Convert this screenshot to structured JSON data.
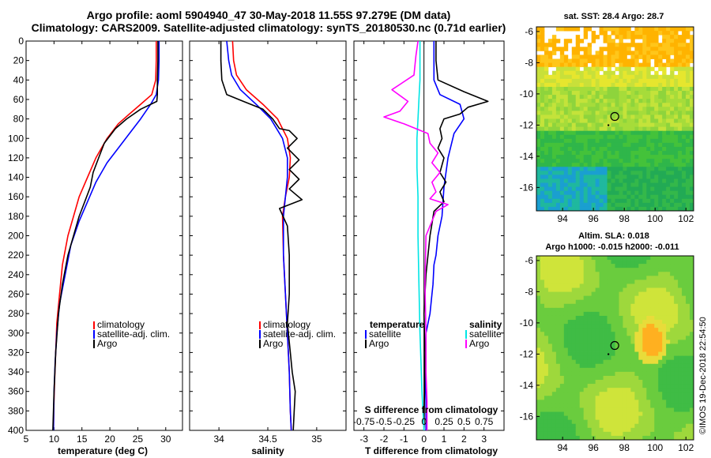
{
  "header": {
    "line1": "Argo profile: aoml 5904940_47 30-May-2018 11.55S 97.279E (DM data)",
    "line2": "Climatology: CARS2009. Satellite-adjusted climatology: synTS_20180530.nc (0.71d earlier)"
  },
  "watermark": "©IMOS 19-Dec-2018 22:54:50",
  "colors": {
    "clim": "#ff0000",
    "sat": "#0000ff",
    "argo": "#000000",
    "sat_s": "#00e5e5",
    "argo_s": "#ff00ff"
  },
  "chart_data": [
    {
      "type": "line",
      "name": "temperature",
      "xlabel": "temperature (deg C)",
      "ylabel": "",
      "xlim": [
        5,
        33
      ],
      "ylim": [
        400,
        0
      ],
      "xticks": [
        5,
        10,
        15,
        20,
        25,
        30
      ],
      "yticks": [
        0,
        20,
        40,
        60,
        80,
        100,
        120,
        140,
        160,
        180,
        200,
        220,
        240,
        260,
        280,
        300,
        320,
        340,
        360,
        380,
        400
      ],
      "legend": [
        "climatology",
        "satellite-adj. clim.",
        "Argo"
      ],
      "series": [
        {
          "name": "climatology",
          "color": "#ff0000",
          "x": [
            28.3,
            28.3,
            28.2,
            27.5,
            25.5,
            23.5,
            21.5,
            19.5,
            17.5,
            16.0,
            14.5,
            13.5,
            12.5,
            11.5,
            11.0,
            10.5,
            10.3,
            10.1,
            9.95,
            9.9
          ],
          "y": [
            0,
            20,
            40,
            55,
            65,
            75,
            85,
            100,
            120,
            140,
            160,
            180,
            200,
            230,
            260,
            290,
            320,
            350,
            380,
            400
          ]
        },
        {
          "name": "satellite-adj. clim.",
          "color": "#0000ff",
          "x": [
            28.8,
            28.8,
            28.7,
            28.3,
            27.3,
            25.5,
            23.5,
            21.5,
            19.5,
            17.5,
            16.0,
            14.5,
            13.0,
            12.0,
            11.0,
            10.5,
            10.2,
            10.0,
            9.9
          ],
          "y": [
            0,
            20,
            40,
            55,
            65,
            80,
            95,
            110,
            125,
            145,
            165,
            185,
            210,
            240,
            270,
            300,
            330,
            360,
            400
          ]
        },
        {
          "name": "Argo",
          "color": "#000000",
          "x": [
            28.6,
            28.6,
            28.5,
            28.5,
            28.4,
            25.5,
            23.0,
            21.0,
            19.0,
            18.0,
            17.0,
            16.5,
            15.5,
            14.5,
            13.5,
            12.5,
            11.5,
            10.8,
            10.3,
            10.0,
            9.8
          ],
          "y": [
            0,
            20,
            40,
            55,
            62,
            70,
            80,
            90,
            105,
            120,
            135,
            150,
            165,
            180,
            200,
            220,
            250,
            280,
            320,
            360,
            400
          ]
        }
      ]
    },
    {
      "type": "line",
      "name": "salinity",
      "xlabel": "salinity",
      "ylabel": "",
      "xlim": [
        33.7,
        35.3
      ],
      "ylim": [
        400,
        0
      ],
      "xticks": [
        34,
        34.5,
        35
      ],
      "legend": [
        "climatology",
        "satellite-adj. clim.",
        "Argo"
      ],
      "series": [
        {
          "name": "climatology",
          "color": "#ff0000",
          "x": [
            34.14,
            34.15,
            34.18,
            34.28,
            34.45,
            34.6,
            34.7,
            34.73,
            34.72,
            34.68,
            34.65,
            34.66,
            34.68,
            34.7,
            34.72,
            34.73,
            34.74
          ],
          "y": [
            0,
            20,
            35,
            50,
            65,
            80,
            100,
            120,
            140,
            160,
            180,
            220,
            260,
            300,
            340,
            380,
            400
          ]
        },
        {
          "name": "satellite-adj. clim.",
          "color": "#0000ff",
          "x": [
            34.08,
            34.1,
            34.13,
            34.22,
            34.38,
            34.53,
            34.65,
            34.7,
            34.7,
            34.68,
            34.66,
            34.66,
            34.68,
            34.7,
            34.72,
            34.73,
            34.74
          ],
          "y": [
            0,
            20,
            35,
            50,
            65,
            80,
            100,
            120,
            140,
            160,
            180,
            220,
            260,
            300,
            340,
            380,
            400
          ]
        },
        {
          "name": "Argo",
          "color": "#000000",
          "x": [
            34.02,
            34.02,
            34.03,
            34.08,
            34.25,
            34.45,
            34.55,
            34.62,
            34.72,
            34.8,
            34.7,
            34.82,
            34.72,
            34.82,
            34.72,
            34.85,
            34.62,
            34.7,
            34.72,
            34.72,
            34.7,
            34.73,
            34.75,
            34.78,
            34.77,
            34.76
          ],
          "y": [
            0,
            20,
            40,
            55,
            62,
            70,
            80,
            90,
            92,
            100,
            110,
            122,
            132,
            142,
            152,
            163,
            172,
            190,
            220,
            260,
            290,
            320,
            340,
            360,
            380,
            400
          ]
        }
      ]
    },
    {
      "type": "line",
      "name": "T / S difference from climatology",
      "xlabel": "T difference from climatology",
      "xlabel_top": "S difference from climatology",
      "xlim": [
        -3.5,
        4.0
      ],
      "ylim": [
        400,
        0
      ],
      "xticks": [
        -3,
        -2,
        -1,
        0,
        1,
        2,
        3
      ],
      "xticks_s": [
        "-0.75",
        "-0.5",
        "-0.25",
        "0",
        "0.25",
        "0.5",
        "0.75"
      ],
      "legend_left_title": "temperature",
      "legend_right_title": "salinity",
      "legend_left": [
        "satellite",
        "Argo"
      ],
      "legend_right": [
        "satellite",
        "Argo"
      ],
      "series": [
        {
          "name": "T satellite",
          "color": "#0000ff",
          "x": [
            0.5,
            0.5,
            0.5,
            0.8,
            1.8,
            2.0,
            1.5,
            1.2,
            1.0,
            0.9,
            0.7,
            0.6,
            0.5,
            0.45,
            0.4,
            0.3,
            0.1,
            0.05,
            0.1,
            0.1
          ],
          "y": [
            0,
            20,
            40,
            55,
            65,
            80,
            95,
            120,
            150,
            180,
            200,
            220,
            230,
            250,
            260,
            280,
            300,
            340,
            370,
            400
          ]
        },
        {
          "name": "T Argo",
          "color": "#000000",
          "x": [
            0.6,
            0.6,
            0.7,
            2.0,
            3.2,
            2.2,
            1.8,
            1.0,
            0.8,
            0.9,
            0.7,
            1.0,
            0.8,
            1.1,
            0.8,
            1.0,
            0.5,
            0.3,
            0.1,
            0.0,
            0.05,
            0.0
          ],
          "y": [
            0,
            20,
            40,
            52,
            62,
            68,
            75,
            80,
            90,
            100,
            110,
            120,
            135,
            145,
            155,
            165,
            175,
            200,
            240,
            280,
            320,
            400
          ]
        },
        {
          "name": "S satellite",
          "color": "#00e5e5",
          "x": [
            -0.2,
            -0.2,
            -0.25,
            -0.3,
            -0.35,
            -0.35,
            -0.3,
            -0.3,
            -0.25,
            -0.2,
            -0.15,
            -0.1,
            -0.05,
            0.0
          ],
          "y": [
            0,
            40,
            60,
            80,
            100,
            130,
            160,
            200,
            250,
            300,
            330,
            360,
            380,
            400
          ]
        },
        {
          "name": "S Argo",
          "color": "#ff00ff",
          "x": [
            -0.3,
            -0.4,
            -0.5,
            -1.6,
            -0.8,
            -1.2,
            -2.0,
            -1.0,
            0.2,
            0.3,
            0.7,
            0.4,
            0.8,
            0.4,
            0.6,
            0.3,
            1.2,
            0.6,
            0.1,
            0.05,
            0.1,
            0.1,
            0.15,
            0.15
          ],
          "y": [
            0,
            15,
            35,
            50,
            62,
            72,
            78,
            85,
            95,
            105,
            115,
            125,
            135,
            145,
            155,
            162,
            168,
            175,
            200,
            250,
            300,
            340,
            370,
            400
          ]
        }
      ]
    },
    {
      "type": "heatmap",
      "name": "satellite SST map",
      "title": "sat. SST: 28.4 Argo: 28.7",
      "xticks": [
        "94",
        "96",
        "98",
        "100",
        "102"
      ],
      "yticks": [
        "-6",
        "-8",
        "-10",
        "-12",
        "-14",
        "-16"
      ],
      "xlim": [
        92.3,
        102.5
      ],
      "ylim": [
        -17.5,
        -5.7
      ],
      "marker": {
        "lon": 97.28,
        "lat": -11.55
      }
    },
    {
      "type": "heatmap",
      "name": "altimetry SLA map",
      "title": "Altim. SLA: 0.018",
      "subtitle": "Argo h1000: -0.015 h2000: -0.011",
      "xticks": [
        "94",
        "96",
        "98",
        "100",
        "102"
      ],
      "yticks": [
        "-6",
        "-8",
        "-10",
        "-12",
        "-14",
        "-16"
      ],
      "xlim": [
        92.3,
        102.5
      ],
      "ylim": [
        -17.5,
        -5.7
      ],
      "marker": {
        "lon": 97.28,
        "lat": -11.55
      }
    }
  ]
}
